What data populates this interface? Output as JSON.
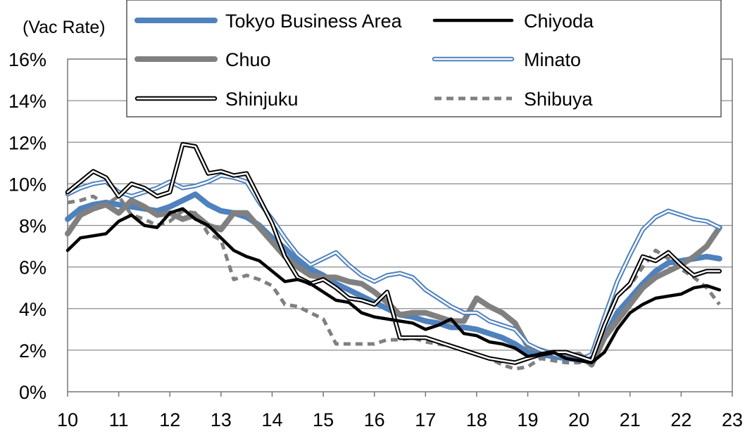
{
  "chart_data": {
    "type": "line",
    "title": "",
    "xlabel": "",
    "ylabel": "(Vac Rate)",
    "ylim": [
      0,
      16
    ],
    "xlim": [
      10,
      23
    ],
    "y_ticks": [
      "0%",
      "2%",
      "4%",
      "6%",
      "8%",
      "10%",
      "12%",
      "14%",
      "16%"
    ],
    "x_ticks": [
      "10",
      "11",
      "12",
      "13",
      "14",
      "15",
      "16",
      "17",
      "18",
      "19",
      "20",
      "21",
      "22",
      "23"
    ],
    "grid": true,
    "legend_position": "top",
    "series": [
      {
        "name": "Tokyo Business Area",
        "color": "#4f81bd",
        "style": "thick",
        "x": [
          10.0,
          10.25,
          10.5,
          10.75,
          11.0,
          11.25,
          11.5,
          11.75,
          12.0,
          12.25,
          12.5,
          12.75,
          13.0,
          13.25,
          13.5,
          13.75,
          14.0,
          14.25,
          14.5,
          14.75,
          15.0,
          15.25,
          15.5,
          15.75,
          16.0,
          16.25,
          16.5,
          16.75,
          17.0,
          17.25,
          17.5,
          17.75,
          18.0,
          18.25,
          18.5,
          18.75,
          19.0,
          19.25,
          19.5,
          19.75,
          20.0,
          20.25,
          20.5,
          20.75,
          21.0,
          21.25,
          21.5,
          21.75,
          22.0,
          22.25,
          22.5,
          22.75
        ],
        "y": [
          8.3,
          8.8,
          9.0,
          9.1,
          9.0,
          8.9,
          8.8,
          8.7,
          8.9,
          9.2,
          9.5,
          9.0,
          8.7,
          8.6,
          8.4,
          8.0,
          7.4,
          6.9,
          6.3,
          5.9,
          5.6,
          5.2,
          4.9,
          4.6,
          4.3,
          4.0,
          3.7,
          3.6,
          3.4,
          3.3,
          3.1,
          3.1,
          3.0,
          2.8,
          2.6,
          2.3,
          1.9,
          1.8,
          1.7,
          1.6,
          1.6,
          1.7,
          2.6,
          3.8,
          4.5,
          5.2,
          5.8,
          6.2,
          6.3,
          6.4,
          6.5,
          6.4
        ]
      },
      {
        "name": "Chiyoda",
        "color": "#000000",
        "style": "solid",
        "x": [
          10.0,
          10.25,
          10.5,
          10.75,
          11.0,
          11.25,
          11.5,
          11.75,
          12.0,
          12.25,
          12.5,
          12.75,
          13.0,
          13.25,
          13.5,
          13.75,
          14.0,
          14.25,
          14.5,
          14.75,
          15.0,
          15.25,
          15.5,
          15.75,
          16.0,
          16.25,
          16.5,
          16.75,
          17.0,
          17.25,
          17.5,
          17.75,
          18.0,
          18.25,
          18.5,
          18.75,
          19.0,
          19.25,
          19.5,
          19.75,
          20.0,
          20.25,
          20.5,
          20.75,
          21.0,
          21.25,
          21.5,
          21.75,
          22.0,
          22.25,
          22.5,
          22.75
        ],
        "y": [
          6.8,
          7.4,
          7.5,
          7.6,
          8.2,
          8.5,
          8.0,
          7.9,
          8.6,
          8.8,
          8.3,
          8.0,
          7.4,
          6.8,
          6.5,
          6.3,
          5.8,
          5.3,
          5.4,
          5.2,
          4.8,
          4.4,
          4.3,
          3.8,
          3.6,
          3.5,
          3.4,
          3.3,
          3.0,
          3.2,
          3.5,
          2.8,
          2.7,
          2.4,
          2.3,
          2.1,
          1.7,
          1.8,
          1.9,
          1.6,
          1.5,
          1.4,
          1.9,
          3.0,
          3.8,
          4.2,
          4.5,
          4.6,
          4.7,
          5.0,
          5.1,
          4.9
        ]
      },
      {
        "name": "Chuo",
        "color": "#808080",
        "style": "thick",
        "x": [
          10.0,
          10.25,
          10.5,
          10.75,
          11.0,
          11.25,
          11.5,
          11.75,
          12.0,
          12.25,
          12.5,
          12.75,
          13.0,
          13.25,
          13.5,
          13.75,
          14.0,
          14.25,
          14.5,
          14.75,
          15.0,
          15.25,
          15.5,
          15.75,
          16.0,
          16.25,
          16.5,
          16.75,
          17.0,
          17.25,
          17.5,
          17.75,
          18.0,
          18.25,
          18.5,
          18.75,
          19.0,
          19.25,
          19.5,
          19.75,
          20.0,
          20.25,
          20.5,
          20.75,
          21.0,
          21.25,
          21.5,
          21.75,
          22.0,
          22.25,
          22.5,
          22.75
        ],
        "y": [
          7.6,
          8.5,
          8.8,
          9.0,
          8.6,
          9.2,
          8.9,
          8.5,
          8.6,
          8.3,
          8.5,
          8.0,
          7.8,
          8.6,
          8.6,
          7.9,
          7.2,
          6.5,
          6.0,
          5.6,
          5.5,
          5.5,
          5.3,
          5.2,
          4.8,
          4.3,
          3.7,
          3.8,
          3.8,
          3.6,
          3.4,
          3.4,
          4.5,
          4.1,
          3.8,
          3.3,
          2.2,
          2.0,
          1.8,
          1.7,
          1.8,
          1.3,
          2.6,
          3.4,
          4.2,
          5.0,
          5.5,
          5.8,
          6.1,
          6.5,
          7.0,
          7.9
        ]
      },
      {
        "name": "Minato",
        "color": "#4f81bd",
        "style": "double",
        "x": [
          10.0,
          10.25,
          10.5,
          10.75,
          11.0,
          11.25,
          11.5,
          11.75,
          12.0,
          12.25,
          12.5,
          12.75,
          13.0,
          13.25,
          13.5,
          13.75,
          14.0,
          14.25,
          14.5,
          14.75,
          15.0,
          15.25,
          15.5,
          15.75,
          16.0,
          16.25,
          16.5,
          16.75,
          17.0,
          17.25,
          17.5,
          17.75,
          18.0,
          18.25,
          18.5,
          18.75,
          19.0,
          19.25,
          19.5,
          19.75,
          20.0,
          20.25,
          20.5,
          20.75,
          21.0,
          21.25,
          21.5,
          21.75,
          22.0,
          22.25,
          22.5,
          22.75
        ],
        "y": [
          9.5,
          9.8,
          10.0,
          10.1,
          9.6,
          9.4,
          9.6,
          9.8,
          10.1,
          9.8,
          9.9,
          10.1,
          10.4,
          10.3,
          10.1,
          9.1,
          8.3,
          7.4,
          6.6,
          6.1,
          6.4,
          6.7,
          6.1,
          5.6,
          5.3,
          5.6,
          5.7,
          5.5,
          4.9,
          4.5,
          4.1,
          3.8,
          3.8,
          3.4,
          3.2,
          3.0,
          2.3,
          2.0,
          1.8,
          1.6,
          1.5,
          1.8,
          3.6,
          5.3,
          6.6,
          7.8,
          8.4,
          8.7,
          8.5,
          8.3,
          8.2,
          7.9
        ]
      },
      {
        "name": "Shinjuku",
        "color": "#000000",
        "style": "double",
        "x": [
          10.0,
          10.25,
          10.5,
          10.75,
          11.0,
          11.25,
          11.5,
          11.75,
          12.0,
          12.25,
          12.5,
          12.75,
          13.0,
          13.25,
          13.5,
          13.75,
          14.0,
          14.25,
          14.5,
          14.75,
          15.0,
          15.25,
          15.5,
          15.75,
          16.0,
          16.25,
          16.5,
          16.75,
          17.0,
          17.25,
          17.5,
          17.75,
          18.0,
          18.25,
          18.5,
          18.75,
          19.0,
          19.25,
          19.5,
          19.75,
          20.0,
          20.25,
          20.5,
          20.75,
          21.0,
          21.25,
          21.5,
          21.75,
          22.0,
          22.25,
          22.5,
          22.75
        ],
        "y": [
          9.6,
          10.1,
          10.6,
          10.3,
          9.4,
          10.0,
          9.8,
          9.4,
          9.6,
          11.9,
          11.8,
          10.5,
          10.6,
          10.4,
          10.5,
          9.3,
          8.1,
          6.5,
          5.5,
          5.2,
          5.4,
          5.0,
          4.5,
          4.4,
          4.2,
          4.8,
          2.6,
          2.6,
          2.6,
          2.4,
          2.2,
          2.0,
          1.8,
          1.6,
          1.5,
          1.4,
          1.6,
          1.8,
          1.9,
          1.9,
          1.7,
          1.5,
          3.2,
          4.6,
          5.2,
          6.5,
          6.3,
          6.7,
          6.1,
          5.6,
          5.8,
          5.8
        ]
      },
      {
        "name": "Shibuya",
        "color": "#808080",
        "style": "dashed",
        "x": [
          10.0,
          10.25,
          10.5,
          10.75,
          11.0,
          11.25,
          11.5,
          11.75,
          12.0,
          12.25,
          12.5,
          12.75,
          13.0,
          13.25,
          13.5,
          13.75,
          14.0,
          14.25,
          14.5,
          14.75,
          15.0,
          15.25,
          15.5,
          15.75,
          16.0,
          16.25,
          16.5,
          16.75,
          17.0,
          17.25,
          17.5,
          17.75,
          18.0,
          18.25,
          18.5,
          18.75,
          19.0,
          19.25,
          19.5,
          19.75,
          20.0,
          20.25,
          20.5,
          20.75,
          21.0,
          21.25,
          21.5,
          21.75,
          22.0,
          22.25,
          22.5,
          22.75
        ],
        "y": [
          9.1,
          9.2,
          9.4,
          9.0,
          9.4,
          8.5,
          8.3,
          8.0,
          8.2,
          8.7,
          8.6,
          7.6,
          7.3,
          5.4,
          5.6,
          5.4,
          5.1,
          4.2,
          4.1,
          3.8,
          3.5,
          2.3,
          2.3,
          2.3,
          2.3,
          2.5,
          2.5,
          2.6,
          2.4,
          2.3,
          2.2,
          2.0,
          1.8,
          1.6,
          1.3,
          1.1,
          1.2,
          1.6,
          1.5,
          1.4,
          1.4,
          1.6,
          3.2,
          4.6,
          5.1,
          6.0,
          6.8,
          6.4,
          5.9,
          5.5,
          5.0,
          4.2
        ]
      }
    ]
  }
}
